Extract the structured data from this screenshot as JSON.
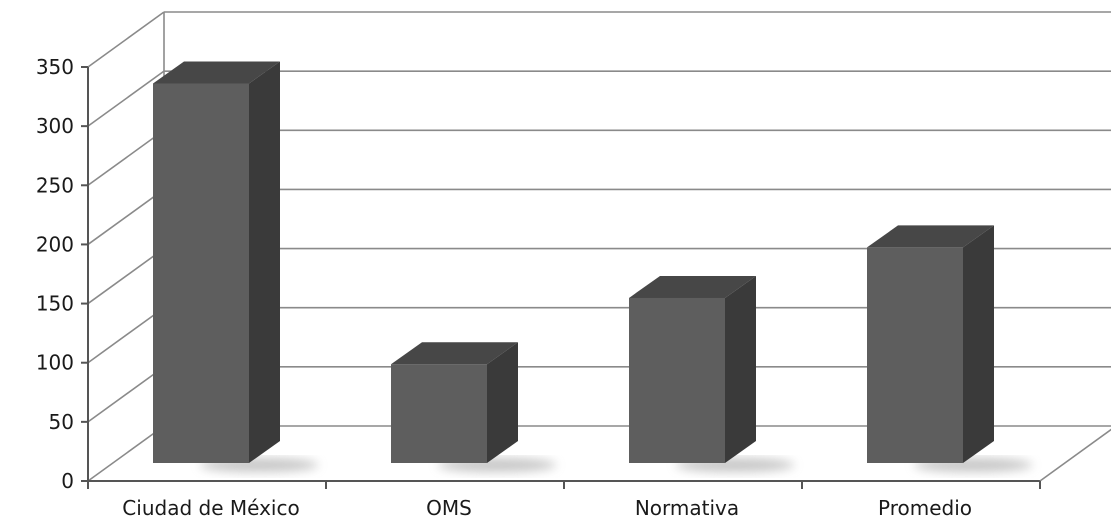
{
  "chart_data": {
    "type": "bar",
    "style": "3d-column",
    "categories": [
      "Ciudad de México",
      "OMS",
      "Normativa",
      "Promedio"
    ],
    "values": [
      338,
      88,
      147,
      192
    ],
    "ylim": [
      0,
      350
    ],
    "yticks": [
      0,
      50,
      100,
      150,
      200,
      250,
      300,
      350
    ],
    "grid": true,
    "legend": "none",
    "colors": {
      "bar_front": "#5e5e5e",
      "bar_top": "#474747",
      "bar_side": "#3a3a3a",
      "grid": "#8a8a8a",
      "axis": "#555555"
    }
  }
}
